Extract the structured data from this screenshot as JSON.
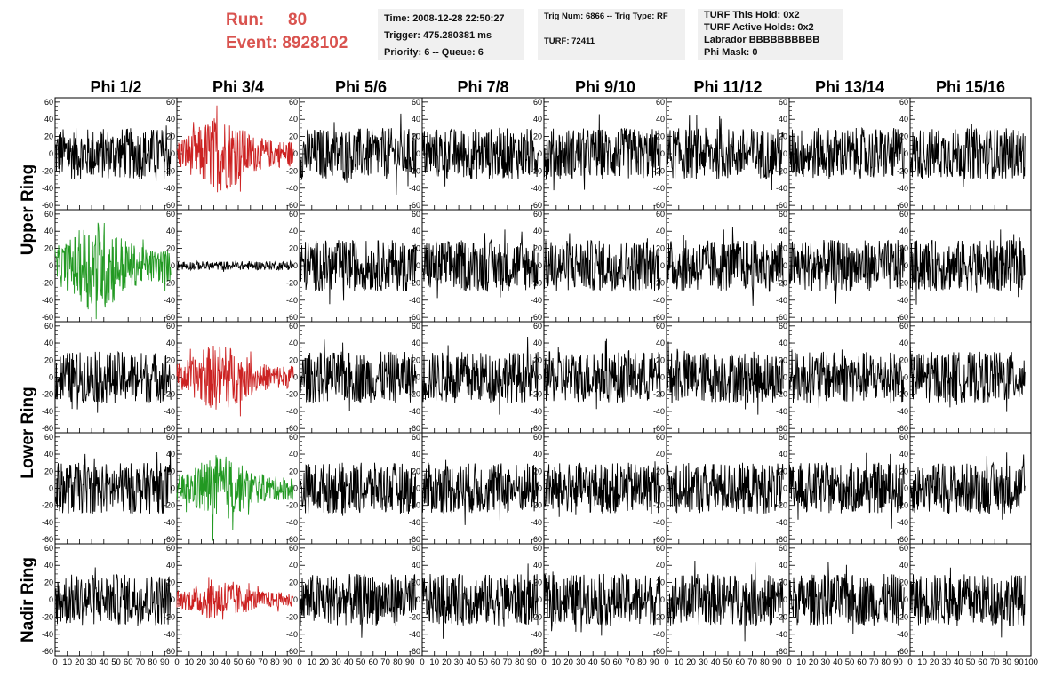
{
  "header": {
    "run_label": "Run:",
    "run_value": "80",
    "event_label": "Event:",
    "event_value": "8928102",
    "time": "Time: 2008-12-28 22:50:27",
    "trigger": "Trigger: 475.280381 ms",
    "priority": "Priority: 6 -- Queue: 6",
    "trig_num": "Trig Num: 6866 -- Trig Type: RF",
    "turf": "TURF: 72411",
    "turf_hold": "TURF This Hold: 0x2",
    "turf_active": "TURF Active Holds: 0x2",
    "labrador": "Labrador BBBBBBBBBB",
    "phi_mask": "Phi Mask: 0"
  },
  "chart_data": {
    "type": "line",
    "columns": [
      "Phi 1/2",
      "Phi 3/4",
      "Phi 5/6",
      "Phi 7/8",
      "Phi 9/10",
      "Phi 11/12",
      "Phi 13/14",
      "Phi 15/16"
    ],
    "rings": [
      {
        "label": "Upper Ring",
        "rows": [
          0,
          1
        ]
      },
      {
        "label": "Lower Ring",
        "rows": [
          2,
          3
        ]
      },
      {
        "label": "Nadir Ring",
        "rows": [
          4
        ]
      }
    ],
    "ylim": [
      -65,
      65
    ],
    "yticks": [
      -60,
      -40,
      -20,
      0,
      20,
      40,
      60
    ],
    "xlim": [
      0,
      100
    ],
    "xticks": [
      0,
      10,
      20,
      30,
      40,
      50,
      60,
      70,
      80,
      90,
      100
    ],
    "x_tick_labels": [
      "0",
      "10",
      "20",
      "30",
      "40",
      "50",
      "60",
      "70",
      "80",
      "90",
      "100"
    ],
    "colors": {
      "default": "#000000",
      "red": "#cc2222",
      "green": "#229922"
    },
    "highlighted": [
      {
        "row": 0,
        "col": 1,
        "color": "red",
        "amplitude": 45
      },
      {
        "row": 1,
        "col": 0,
        "color": "green",
        "amplitude": 55
      },
      {
        "row": 1,
        "col": 1,
        "color": "black",
        "amplitude": 5
      },
      {
        "row": 2,
        "col": 1,
        "color": "red",
        "amplitude": 40
      },
      {
        "row": 3,
        "col": 1,
        "color": "green",
        "amplitude": 40
      },
      {
        "row": 4,
        "col": 1,
        "color": "red",
        "amplitude": 25
      }
    ],
    "default_amplitude": 30
  }
}
